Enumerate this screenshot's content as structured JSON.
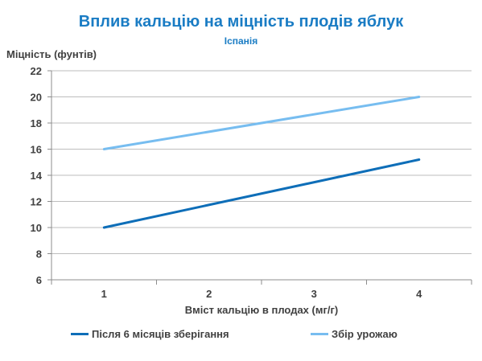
{
  "chart_data": {
    "type": "line",
    "title": "Вплив кальцію на міцність плодів яблук",
    "subtitle": "Іспанія",
    "xlabel": "Вміст кальцію в плодах (мг/г)",
    "ylabel": "Міцність (фунтів)",
    "categories": [
      "1",
      "2",
      "3",
      "4"
    ],
    "x": [
      1,
      4
    ],
    "xlim": [
      0.5,
      4.5
    ],
    "ylim": [
      6,
      22
    ],
    "yticks": [
      6,
      8,
      10,
      12,
      14,
      16,
      18,
      20,
      22
    ],
    "grid": true,
    "legend_position": "bottom",
    "series": [
      {
        "name": "Після 6 місяців зберігання",
        "color": "#0e6eb8",
        "values": [
          10,
          15.2
        ]
      },
      {
        "name": "Збір урожаю",
        "color": "#77bdf0",
        "values": [
          16,
          20
        ]
      }
    ]
  }
}
